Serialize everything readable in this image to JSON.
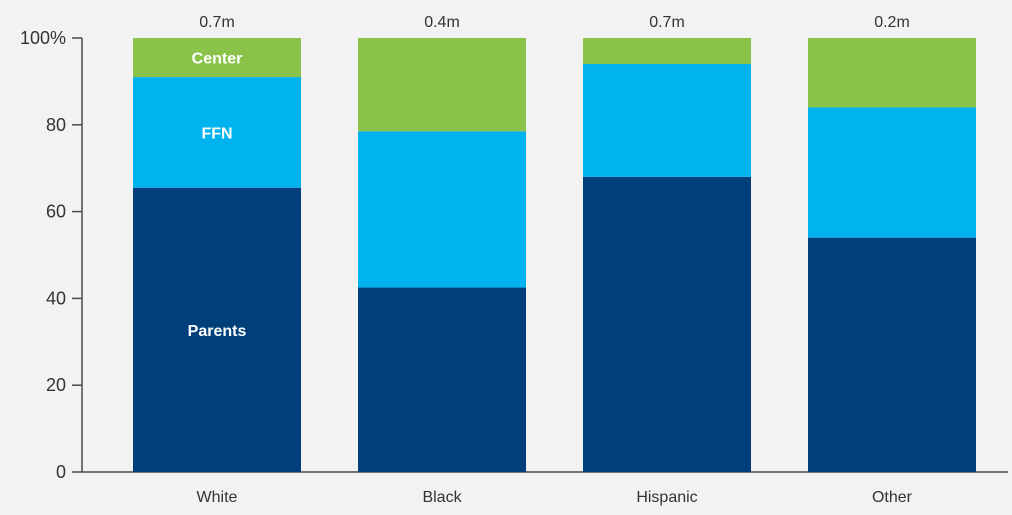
{
  "chart_data": {
    "type": "bar",
    "stacked": true,
    "categories": [
      "White",
      "Black",
      "Hispanic",
      "Other"
    ],
    "totals": [
      "0.7m",
      "0.4m",
      "0.7m",
      "0.2m"
    ],
    "series": [
      {
        "name": "Parents",
        "color": "#003f7a",
        "values": [
          65.5,
          42.5,
          68,
          54
        ]
      },
      {
        "name": "FFN",
        "color": "#00b2ee",
        "values": [
          25.5,
          36,
          26,
          30
        ]
      },
      {
        "name": "Center",
        "color": "#8bc34a",
        "values": [
          9,
          21.5,
          6,
          16
        ]
      }
    ],
    "ylim": [
      0,
      100
    ],
    "yticks": [
      "0",
      "20",
      "40",
      "60",
      "80",
      "100%"
    ],
    "ytick_values": [
      0,
      20,
      40,
      60,
      80,
      100
    ],
    "grid": false,
    "legend": "inline labels inside first bar",
    "label_bar_index": 0
  }
}
